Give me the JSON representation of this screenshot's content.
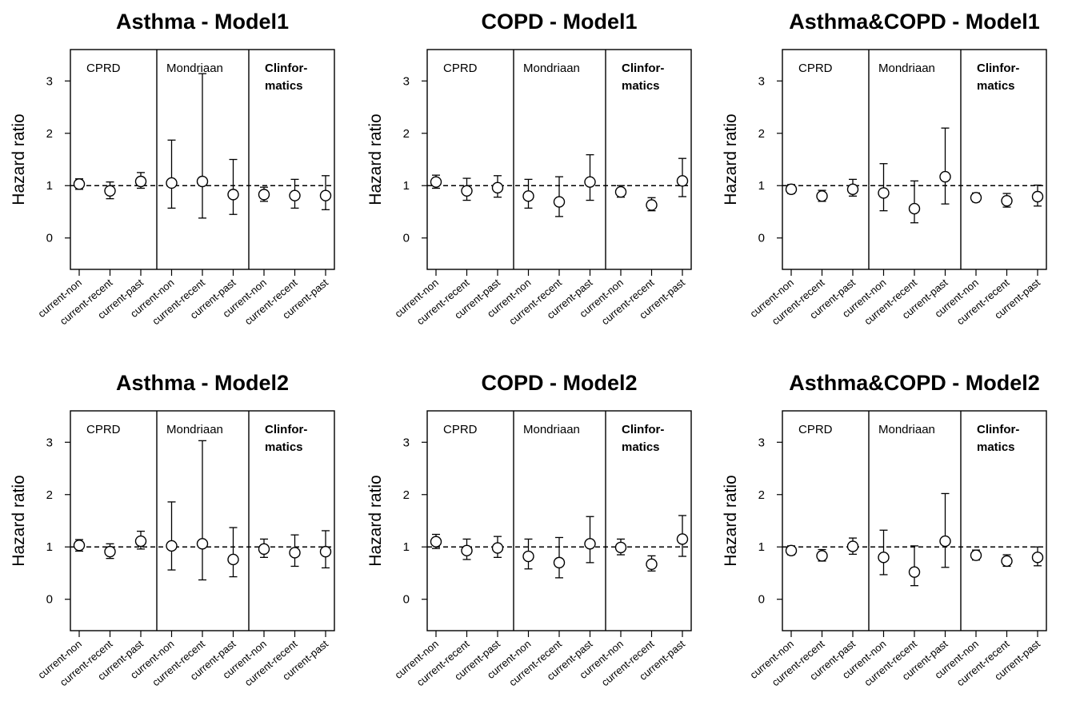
{
  "chart_data": [
    {
      "type": "scatter",
      "title": "Asthma - Model1",
      "ylabel": "Hazard ratio",
      "ylim": [
        -0.6,
        3.6
      ],
      "yticks": [
        0,
        1,
        2,
        3
      ],
      "reference_line": 1,
      "x": [
        "current-non",
        "current-recent",
        "current-past",
        "current-non",
        "current-recent",
        "current-past",
        "current-non",
        "current-recent",
        "current-past"
      ],
      "groups": [
        {
          "label": [
            "CPRD"
          ],
          "bold": false
        },
        {
          "label": [
            "Mondriaan"
          ],
          "bold": false
        },
        {
          "label": [
            "Clinfor-",
            "matics"
          ],
          "bold": true
        }
      ],
      "points": [
        {
          "y": 1.03,
          "lo": 0.93,
          "hi": 1.13
        },
        {
          "y": 0.9,
          "lo": 0.75,
          "hi": 1.07
        },
        {
          "y": 1.08,
          "lo": 0.95,
          "hi": 1.25
        },
        {
          "y": 1.05,
          "lo": 0.57,
          "hi": 1.87
        },
        {
          "y": 1.08,
          "lo": 0.38,
          "hi": 3.14
        },
        {
          "y": 0.83,
          "lo": 0.45,
          "hi": 1.5
        },
        {
          "y": 0.83,
          "lo": 0.7,
          "hi": 0.97
        },
        {
          "y": 0.81,
          "lo": 0.57,
          "hi": 1.12
        },
        {
          "y": 0.81,
          "lo": 0.54,
          "hi": 1.19
        }
      ]
    },
    {
      "type": "scatter",
      "title": "COPD - Model1",
      "ylabel": "Hazard ratio",
      "ylim": [
        -0.6,
        3.6
      ],
      "yticks": [
        0,
        1,
        2,
        3
      ],
      "reference_line": 1,
      "x": [
        "current-non",
        "current-recent",
        "current-past",
        "current-non",
        "current-recent",
        "current-past",
        "current-non",
        "current-recent",
        "current-past"
      ],
      "groups": [
        {
          "label": [
            "CPRD"
          ],
          "bold": false
        },
        {
          "label": [
            "Mondriaan"
          ],
          "bold": false
        },
        {
          "label": [
            "Clinfor-",
            "matics"
          ],
          "bold": true
        }
      ],
      "points": [
        {
          "y": 1.07,
          "lo": 0.95,
          "hi": 1.2
        },
        {
          "y": 0.9,
          "lo": 0.72,
          "hi": 1.14
        },
        {
          "y": 0.96,
          "lo": 0.78,
          "hi": 1.19
        },
        {
          "y": 0.8,
          "lo": 0.57,
          "hi": 1.12
        },
        {
          "y": 0.69,
          "lo": 0.41,
          "hi": 1.17
        },
        {
          "y": 1.07,
          "lo": 0.72,
          "hi": 1.59
        },
        {
          "y": 0.88,
          "lo": 0.78,
          "hi": 1.0
        },
        {
          "y": 0.63,
          "lo": 0.52,
          "hi": 0.77
        },
        {
          "y": 1.09,
          "lo": 0.79,
          "hi": 1.52
        }
      ]
    },
    {
      "type": "scatter",
      "title": "Asthma&COPD - Model1",
      "ylabel": "Hazard ratio",
      "ylim": [
        -0.6,
        3.6
      ],
      "yticks": [
        0,
        1,
        2,
        3
      ],
      "reference_line": 1,
      "x": [
        "current-non",
        "current-recent",
        "current-past",
        "current-non",
        "current-recent",
        "current-past",
        "current-non",
        "current-recent",
        "current-past"
      ],
      "groups": [
        {
          "label": [
            "CPRD"
          ],
          "bold": false
        },
        {
          "label": [
            "Mondriaan"
          ],
          "bold": false
        },
        {
          "label": [
            "Clinfor-",
            "matics"
          ],
          "bold": true
        }
      ],
      "points": [
        {
          "y": 0.93,
          "lo": 0.85,
          "hi": 1.02
        },
        {
          "y": 0.8,
          "lo": 0.7,
          "hi": 0.91
        },
        {
          "y": 0.93,
          "lo": 0.8,
          "hi": 1.12
        },
        {
          "y": 0.86,
          "lo": 0.52,
          "hi": 1.42
        },
        {
          "y": 0.56,
          "lo": 0.29,
          "hi": 1.09
        },
        {
          "y": 1.17,
          "lo": 0.65,
          "hi": 2.1
        },
        {
          "y": 0.77,
          "lo": 0.69,
          "hi": 0.86
        },
        {
          "y": 0.71,
          "lo": 0.59,
          "hi": 0.85
        },
        {
          "y": 0.79,
          "lo": 0.61,
          "hi": 1.01
        }
      ]
    },
    {
      "type": "scatter",
      "title": "Asthma - Model2",
      "ylabel": "Hazard ratio",
      "ylim": [
        -0.6,
        3.6
      ],
      "yticks": [
        0,
        1,
        2,
        3
      ],
      "reference_line": 1,
      "x": [
        "current-non",
        "current-recent",
        "current-past",
        "current-non",
        "current-recent",
        "current-past",
        "current-non",
        "current-recent",
        "current-past"
      ],
      "groups": [
        {
          "label": [
            "CPRD"
          ],
          "bold": false
        },
        {
          "label": [
            "Mondriaan"
          ],
          "bold": false
        },
        {
          "label": [
            "Clinfor-",
            "matics"
          ],
          "bold": true
        }
      ],
      "points": [
        {
          "y": 1.03,
          "lo": 0.92,
          "hi": 1.14
        },
        {
          "y": 0.91,
          "lo": 0.78,
          "hi": 1.06
        },
        {
          "y": 1.11,
          "lo": 0.96,
          "hi": 1.3
        },
        {
          "y": 1.02,
          "lo": 0.56,
          "hi": 1.86
        },
        {
          "y": 1.06,
          "lo": 0.37,
          "hi": 3.03
        },
        {
          "y": 0.76,
          "lo": 0.43,
          "hi": 1.37
        },
        {
          "y": 0.96,
          "lo": 0.8,
          "hi": 1.15
        },
        {
          "y": 0.89,
          "lo": 0.63,
          "hi": 1.23
        },
        {
          "y": 0.91,
          "lo": 0.6,
          "hi": 1.31
        }
      ]
    },
    {
      "type": "scatter",
      "title": "COPD - Model2",
      "ylabel": "Hazard ratio",
      "ylim": [
        -0.6,
        3.6
      ],
      "yticks": [
        0,
        1,
        2,
        3
      ],
      "reference_line": 1,
      "x": [
        "current-non",
        "current-recent",
        "current-past",
        "current-non",
        "current-recent",
        "current-past",
        "current-non",
        "current-recent",
        "current-past"
      ],
      "groups": [
        {
          "label": [
            "CPRD"
          ],
          "bold": false
        },
        {
          "label": [
            "Mondriaan"
          ],
          "bold": false
        },
        {
          "label": [
            "Clinfor-",
            "matics"
          ],
          "bold": true
        }
      ],
      "points": [
        {
          "y": 1.1,
          "lo": 0.97,
          "hi": 1.24
        },
        {
          "y": 0.93,
          "lo": 0.76,
          "hi": 1.15
        },
        {
          "y": 0.98,
          "lo": 0.8,
          "hi": 1.2
        },
        {
          "y": 0.82,
          "lo": 0.58,
          "hi": 1.15
        },
        {
          "y": 0.7,
          "lo": 0.41,
          "hi": 1.18
        },
        {
          "y": 1.06,
          "lo": 0.7,
          "hi": 1.58
        },
        {
          "y": 0.99,
          "lo": 0.85,
          "hi": 1.15
        },
        {
          "y": 0.67,
          "lo": 0.54,
          "hi": 0.83
        },
        {
          "y": 1.15,
          "lo": 0.82,
          "hi": 1.6
        }
      ]
    },
    {
      "type": "scatter",
      "title": "Asthma&COPD - Model2",
      "ylabel": "Hazard ratio",
      "ylim": [
        -0.6,
        3.6
      ],
      "yticks": [
        0,
        1,
        2,
        3
      ],
      "reference_line": 1,
      "x": [
        "current-non",
        "current-recent",
        "current-past",
        "current-non",
        "current-recent",
        "current-past",
        "current-non",
        "current-recent",
        "current-past"
      ],
      "groups": [
        {
          "label": [
            "CPRD"
          ],
          "bold": false
        },
        {
          "label": [
            "Mondriaan"
          ],
          "bold": false
        },
        {
          "label": [
            "Clinfor-",
            "matics"
          ],
          "bold": true
        }
      ],
      "points": [
        {
          "y": 0.93,
          "lo": 0.85,
          "hi": 1.02
        },
        {
          "y": 0.83,
          "lo": 0.73,
          "hi": 0.95
        },
        {
          "y": 1.01,
          "lo": 0.86,
          "hi": 1.17
        },
        {
          "y": 0.8,
          "lo": 0.47,
          "hi": 1.32
        },
        {
          "y": 0.52,
          "lo": 0.26,
          "hi": 1.02
        },
        {
          "y": 1.11,
          "lo": 0.61,
          "hi": 2.02
        },
        {
          "y": 0.84,
          "lo": 0.75,
          "hi": 0.94
        },
        {
          "y": 0.73,
          "lo": 0.63,
          "hi": 0.85
        },
        {
          "y": 0.8,
          "lo": 0.64,
          "hi": 1.0
        }
      ]
    }
  ]
}
